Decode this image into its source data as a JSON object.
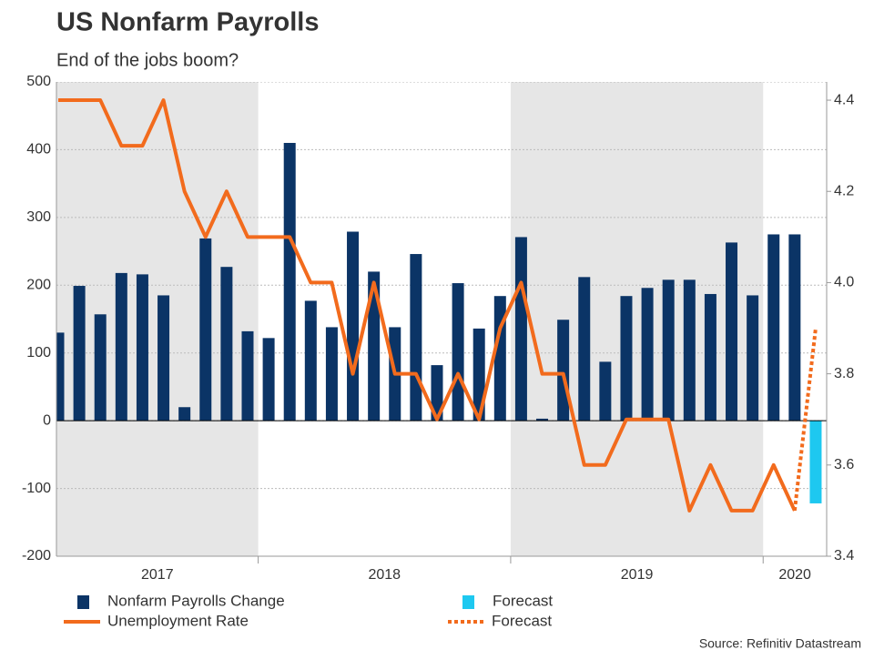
{
  "chart_data": {
    "type": "bar-line",
    "title": "US Nonfarm Payrolls",
    "subtitle": "End of the jobs boom?",
    "source": "Source: Refinitiv Datastream",
    "year_labels": [
      "2017",
      "2018",
      "2019",
      "2020"
    ],
    "ylim": [
      -200,
      500
    ],
    "yticks": [
      -200,
      -100,
      0,
      100,
      200,
      300,
      400,
      500
    ],
    "y2lim": [
      3.4,
      4.44
    ],
    "y2ticks": [
      3.4,
      3.6,
      3.8,
      {
        "value": 4.0,
        "label": "4.0"
      },
      4.2,
      4.4
    ],
    "grid": true,
    "series": [
      {
        "name": "Nonfarm Payrolls Change",
        "kind": "bar",
        "color": "#0b3466",
        "values": [
          130,
          199,
          157,
          218,
          216,
          185,
          20,
          269,
          227,
          132,
          122,
          410,
          177,
          138,
          279,
          220,
          138,
          246,
          82,
          203,
          136,
          184,
          271,
          3,
          149,
          212,
          87,
          184,
          196,
          208,
          208,
          187,
          263,
          185,
          275,
          275,
          null
        ]
      },
      {
        "name": "Forecast",
        "kind": "bar",
        "color": "#1ec8f0",
        "values": [
          null,
          null,
          null,
          null,
          null,
          null,
          null,
          null,
          null,
          null,
          null,
          null,
          null,
          null,
          null,
          null,
          null,
          null,
          null,
          null,
          null,
          null,
          null,
          null,
          null,
          null,
          null,
          null,
          null,
          null,
          null,
          null,
          null,
          null,
          null,
          null,
          -122
        ]
      },
      {
        "name": "Unemployment Rate",
        "kind": "line",
        "axis": "y2",
        "color": "#f26b1d",
        "values": [
          4.4,
          4.4,
          4.4,
          4.3,
          4.3,
          4.4,
          4.2,
          4.1,
          4.2,
          4.1,
          4.1,
          4.1,
          4.0,
          4.0,
          3.8,
          4.0,
          3.8,
          3.8,
          3.7,
          3.8,
          3.7,
          3.9,
          4.0,
          3.8,
          3.8,
          3.6,
          3.6,
          3.7,
          3.7,
          3.7,
          3.5,
          3.6,
          3.5,
          3.5,
          3.6,
          3.5,
          null
        ]
      },
      {
        "name": "Forecast",
        "kind": "line",
        "axis": "y2",
        "dashed": true,
        "color": "#f26b1d",
        "values": [
          null,
          null,
          null,
          null,
          null,
          null,
          null,
          null,
          null,
          null,
          null,
          null,
          null,
          null,
          null,
          null,
          null,
          null,
          null,
          null,
          null,
          null,
          null,
          null,
          null,
          null,
          null,
          null,
          null,
          null,
          null,
          null,
          null,
          null,
          null,
          3.5,
          3.9
        ]
      }
    ]
  }
}
